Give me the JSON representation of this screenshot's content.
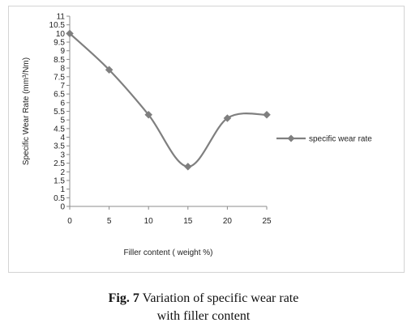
{
  "chart_data": {
    "type": "line",
    "smooth": true,
    "x": [
      0,
      5,
      10,
      15,
      20,
      25
    ],
    "series": [
      {
        "name": "specific wear rate",
        "values": [
          10.0,
          7.9,
          5.3,
          2.3,
          5.1,
          5.3
        ],
        "color": "#7f7f7f",
        "marker": "diamond"
      }
    ],
    "xlabel": "Filler content ( weight %)",
    "ylabel": "Specific Wear Rate (mm³/Nm)",
    "xlim": [
      0,
      25
    ],
    "ylim": [
      0,
      11
    ],
    "xticks": [
      "0",
      "5",
      "10",
      "15",
      "20",
      "25"
    ],
    "yticks": [
      "0",
      "0.5",
      "1",
      "1.5",
      "2",
      "2.5",
      "3",
      "3.5",
      "4",
      "4.5",
      "5",
      "5.5",
      "6",
      "6.5",
      "7",
      "7.5",
      "8",
      "8.5",
      "9",
      "9.5",
      "10",
      "10.5",
      "11"
    ],
    "grid": false,
    "legend_position": "right"
  },
  "caption": {
    "label": "Fig. 7",
    "line1": "Variation of specific wear rate",
    "line2": "with filler content"
  }
}
